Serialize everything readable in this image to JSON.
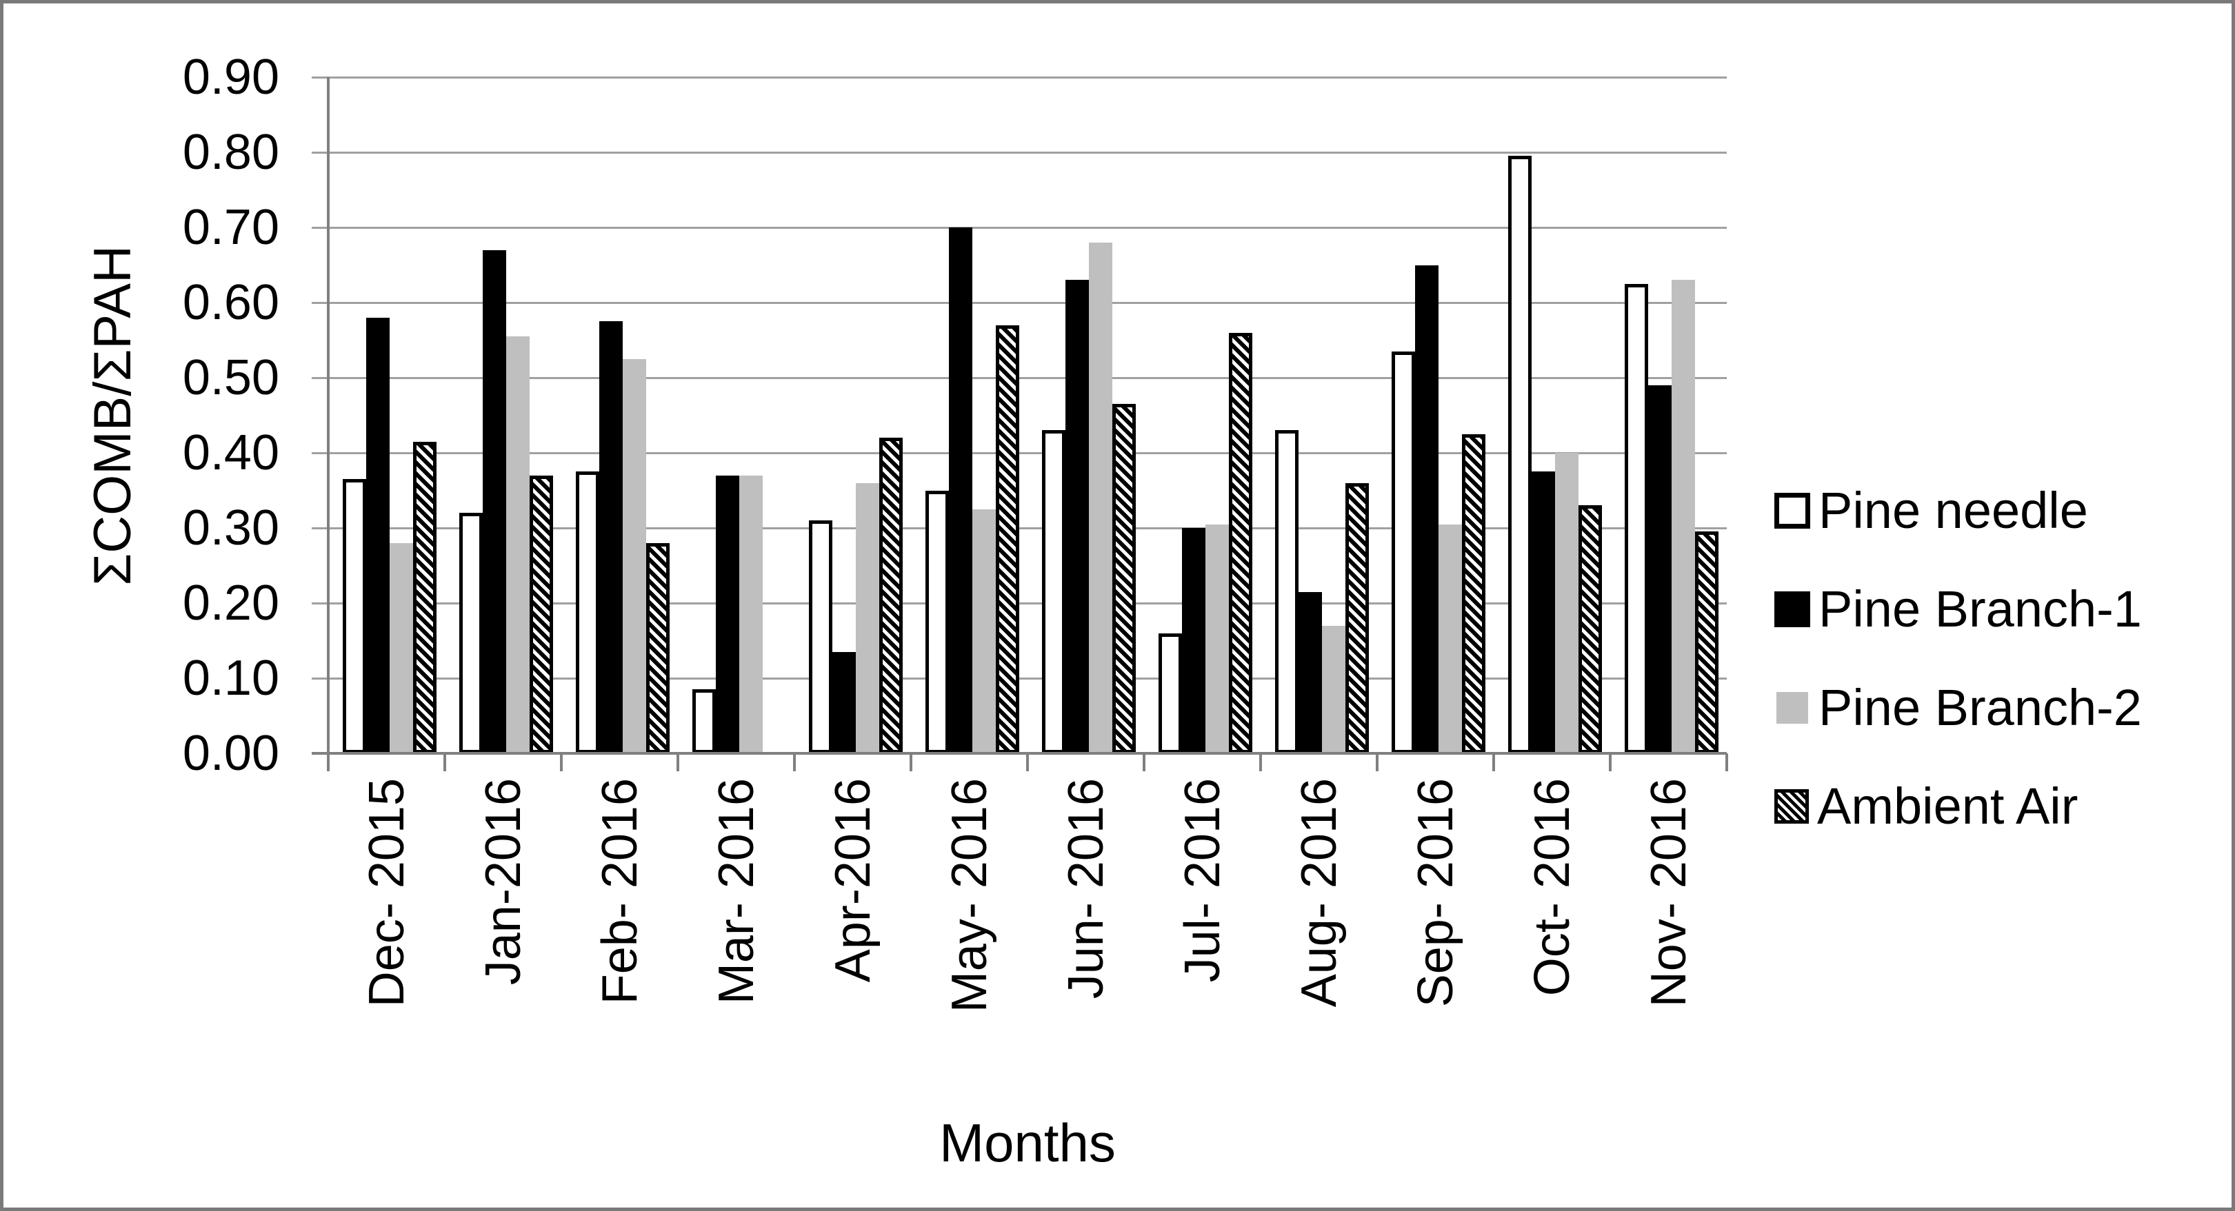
{
  "figure": {
    "border_color": "#7a7a7a",
    "background": "#ffffff"
  },
  "chart_data": {
    "type": "bar",
    "title": "",
    "xlabel": "Months",
    "ylabel": "ΣCOMB/ΣPAH",
    "ylim": [
      0,
      0.9
    ],
    "ytick_step": 0.1,
    "ytick_labels": [
      "0.00",
      "0.10",
      "0.20",
      "0.30",
      "0.40",
      "0.50",
      "0.60",
      "0.70",
      "0.80",
      "0.90"
    ],
    "grid": true,
    "legend_position": "right",
    "categories": [
      "Dec- 2015",
      "Jan-2016",
      "Feb- 2016",
      "Mar- 2016",
      "Apr-2016",
      "May- 2016",
      "Jun- 2016",
      "Jul- 2016",
      "Aug- 2016",
      "Sep- 2016",
      "Oct- 2016",
      "Nov- 2016"
    ],
    "series": [
      {
        "name": "Pine needle",
        "style": "white-outline",
        "values": [
          0.365,
          0.32,
          0.375,
          0.085,
          0.31,
          0.35,
          0.43,
          0.16,
          0.43,
          0.535,
          0.795,
          0.625
        ]
      },
      {
        "name": "Pine Branch-1",
        "style": "solid-black",
        "values": [
          0.58,
          0.67,
          0.575,
          0.37,
          0.135,
          0.7,
          0.63,
          0.3,
          0.215,
          0.65,
          0.375,
          0.49
        ]
      },
      {
        "name": "Pine Branch-2",
        "style": "solid-gray",
        "values": [
          0.28,
          0.555,
          0.525,
          0.37,
          0.36,
          0.325,
          0.68,
          0.305,
          0.17,
          0.305,
          0.4,
          0.63
        ]
      },
      {
        "name": "Ambient Air",
        "style": "diagonal-hatch",
        "values": [
          0.415,
          0.37,
          0.28,
          null,
          0.42,
          0.57,
          0.465,
          0.56,
          0.36,
          0.425,
          0.33,
          0.295
        ]
      }
    ],
    "colors": {
      "bar_black": "#000000",
      "bar_gray": "#bfbfbf",
      "bar_white": "#ffffff",
      "gridline": "#a0a0a0",
      "axis": "#808080",
      "text": "#000000"
    }
  }
}
